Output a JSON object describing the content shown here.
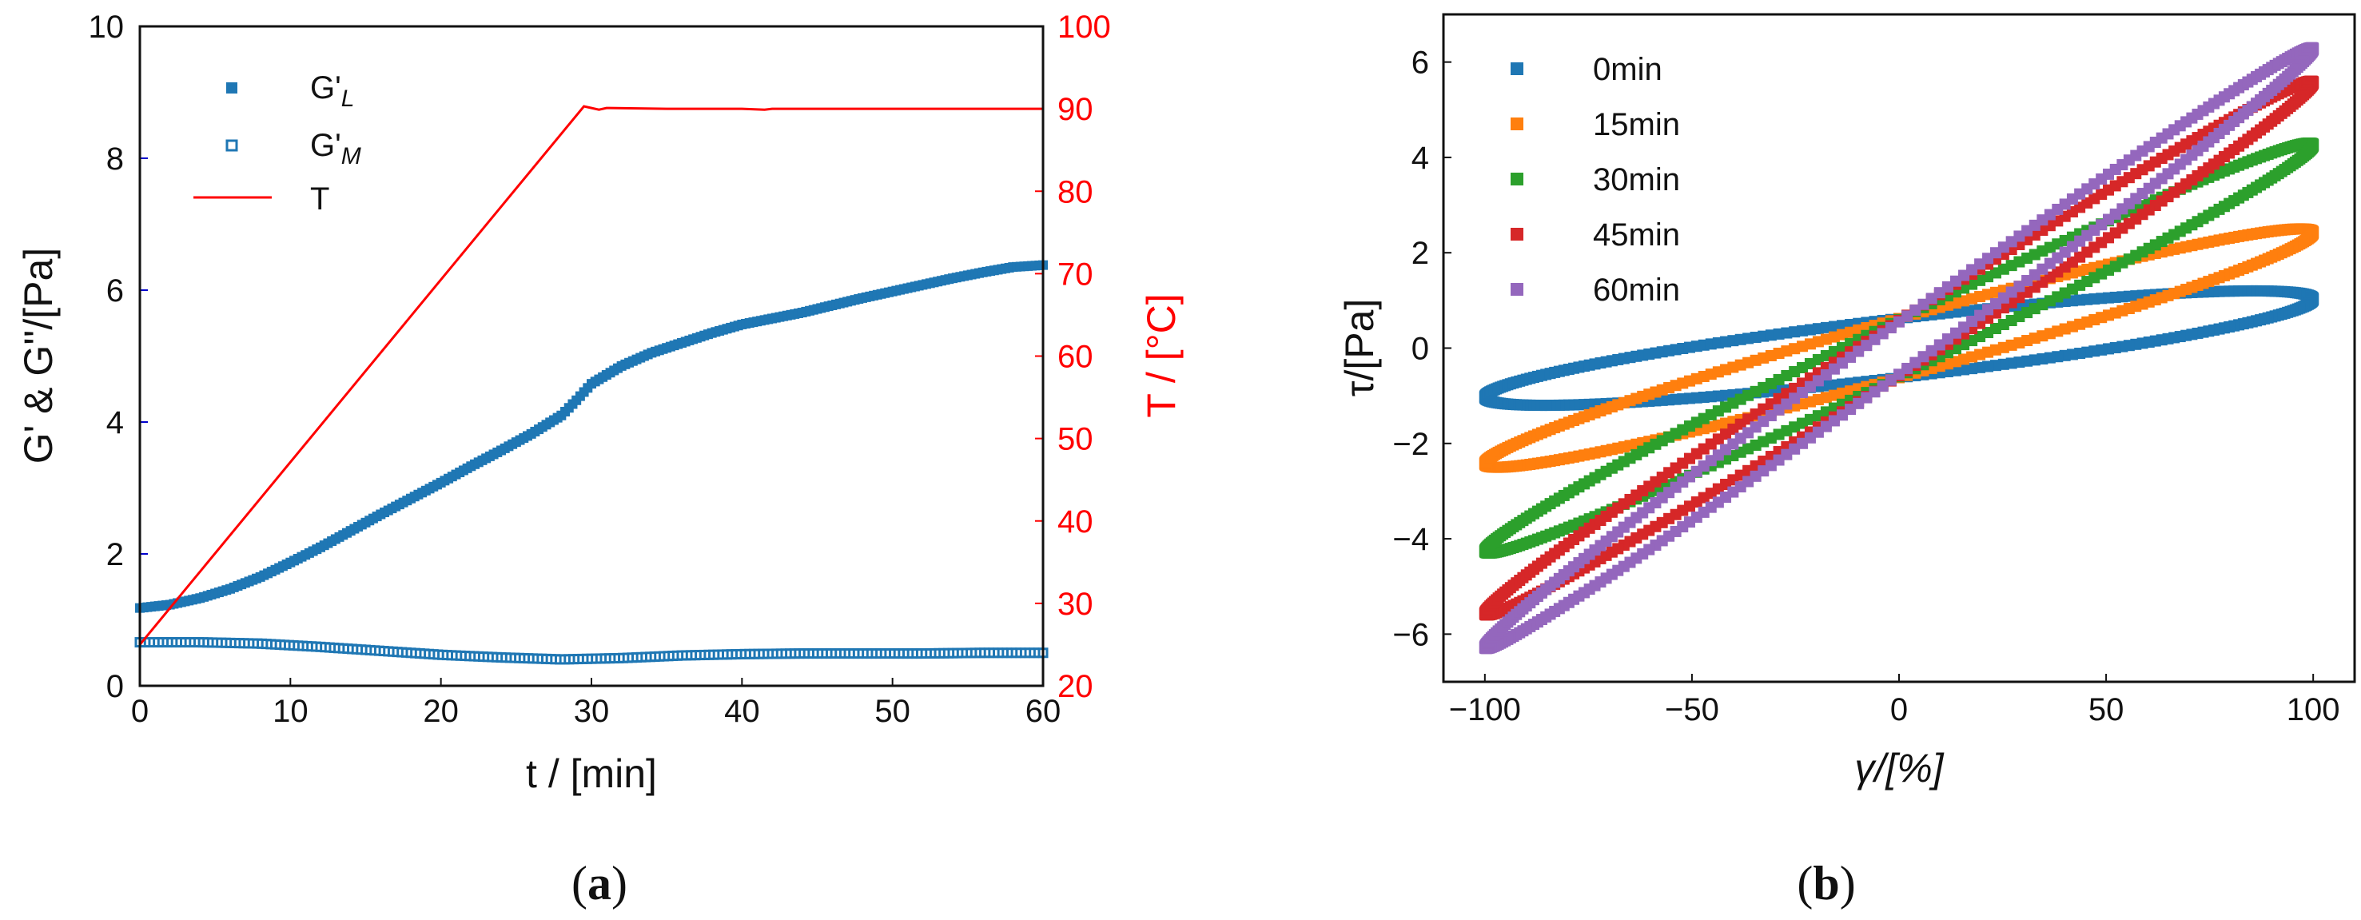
{
  "chart_data": [
    {
      "type": "scatter",
      "panel_label": "(a)",
      "panel_letter": "a",
      "xlabel": "t / [min]",
      "ylabel": "G' & G''/[Pa]",
      "ylabel_right": "T / [°C]",
      "xlim": [
        0,
        60
      ],
      "ylim": [
        0,
        10
      ],
      "ylim_right": [
        20,
        100
      ],
      "xticks": [
        0,
        10,
        20,
        30,
        40,
        50,
        60
      ],
      "yticks": [
        0,
        2,
        4,
        6,
        8,
        10
      ],
      "yticks_right": [
        20,
        30,
        40,
        50,
        60,
        70,
        80,
        90,
        100
      ],
      "colors": {
        "storage": "#1f77b4",
        "temperature": "#ff0000"
      },
      "series": [
        {
          "name": "G'L",
          "label_main": "G'",
          "label_sub": "L",
          "marker": "filled-square",
          "x": [
            0,
            2,
            4,
            6,
            8,
            10,
            12,
            14,
            16,
            18,
            20,
            22,
            24,
            26,
            28,
            29,
            30,
            32,
            34,
            36,
            38,
            40,
            42,
            44,
            46,
            48,
            50,
            52,
            54,
            56,
            58,
            60
          ],
          "y": [
            1.18,
            1.23,
            1.33,
            1.47,
            1.65,
            1.87,
            2.1,
            2.35,
            2.6,
            2.84,
            3.08,
            3.33,
            3.57,
            3.82,
            4.1,
            4.33,
            4.58,
            4.85,
            5.05,
            5.2,
            5.35,
            5.48,
            5.57,
            5.66,
            5.77,
            5.88,
            5.98,
            6.08,
            6.18,
            6.27,
            6.35,
            6.38
          ]
        },
        {
          "name": "G'M",
          "label_main": "G'",
          "label_sub": "M",
          "marker": "open-square",
          "x": [
            0,
            4,
            8,
            12,
            16,
            20,
            24,
            28,
            32,
            36,
            40,
            44,
            48,
            52,
            56,
            60
          ],
          "y": [
            0.66,
            0.66,
            0.64,
            0.59,
            0.53,
            0.47,
            0.43,
            0.4,
            0.42,
            0.46,
            0.48,
            0.49,
            0.49,
            0.49,
            0.5,
            0.5
          ]
        },
        {
          "name": "T",
          "label_main": "T",
          "axis": "right",
          "marker": "line",
          "x": [
            0,
            29.5,
            30,
            30.5,
            31,
            35,
            40,
            41.5,
            42,
            45,
            50,
            60
          ],
          "y": [
            25,
            90.3,
            90.1,
            89.9,
            90.1,
            90.0,
            90.0,
            89.9,
            90.0,
            90.0,
            90.0,
            90.0
          ]
        }
      ]
    },
    {
      "type": "scatter",
      "panel_label": "(b)",
      "panel_letter": "b",
      "xlabel": "γ/[%]",
      "ylabel": "τ/[Pa]",
      "xlim": [
        -110,
        110
      ],
      "ylim": [
        -7,
        7
      ],
      "xticks": [
        -100,
        -50,
        0,
        50,
        100
      ],
      "yticks": [
        -6,
        -4,
        -2,
        0,
        2,
        4,
        6
      ],
      "xtick_labels": [
        "−100",
        "−50",
        "0",
        "50",
        "100"
      ],
      "ytick_labels": [
        "−6",
        "−4",
        "−2",
        "0",
        "2",
        "4",
        "6"
      ],
      "description_of_loops": "Lissajous loops τ(γ) for sinusoidal strain of 100% amplitude; each loop has peak stress amplitude and zero-strain stress intercept",
      "series": [
        {
          "name": "0min",
          "color": "#1f77b4",
          "stress_amplitude": 1.2,
          "stress_at_zero_strain": 0.62,
          "strain_amplitude": 100
        },
        {
          "name": "15min",
          "color": "#ff7f0e",
          "stress_amplitude": 2.5,
          "stress_at_zero_strain": 0.62,
          "strain_amplitude": 100
        },
        {
          "name": "30min",
          "color": "#2ca02c",
          "stress_amplitude": 4.3,
          "stress_at_zero_strain": 0.6,
          "strain_amplitude": 100
        },
        {
          "name": "45min",
          "color": "#d62728",
          "stress_amplitude": 5.6,
          "stress_at_zero_strain": 0.58,
          "strain_amplitude": 100
        },
        {
          "name": "60min",
          "color": "#9467bd",
          "stress_amplitude": 6.3,
          "stress_at_zero_strain": 0.55,
          "strain_amplitude": 100
        }
      ]
    }
  ]
}
